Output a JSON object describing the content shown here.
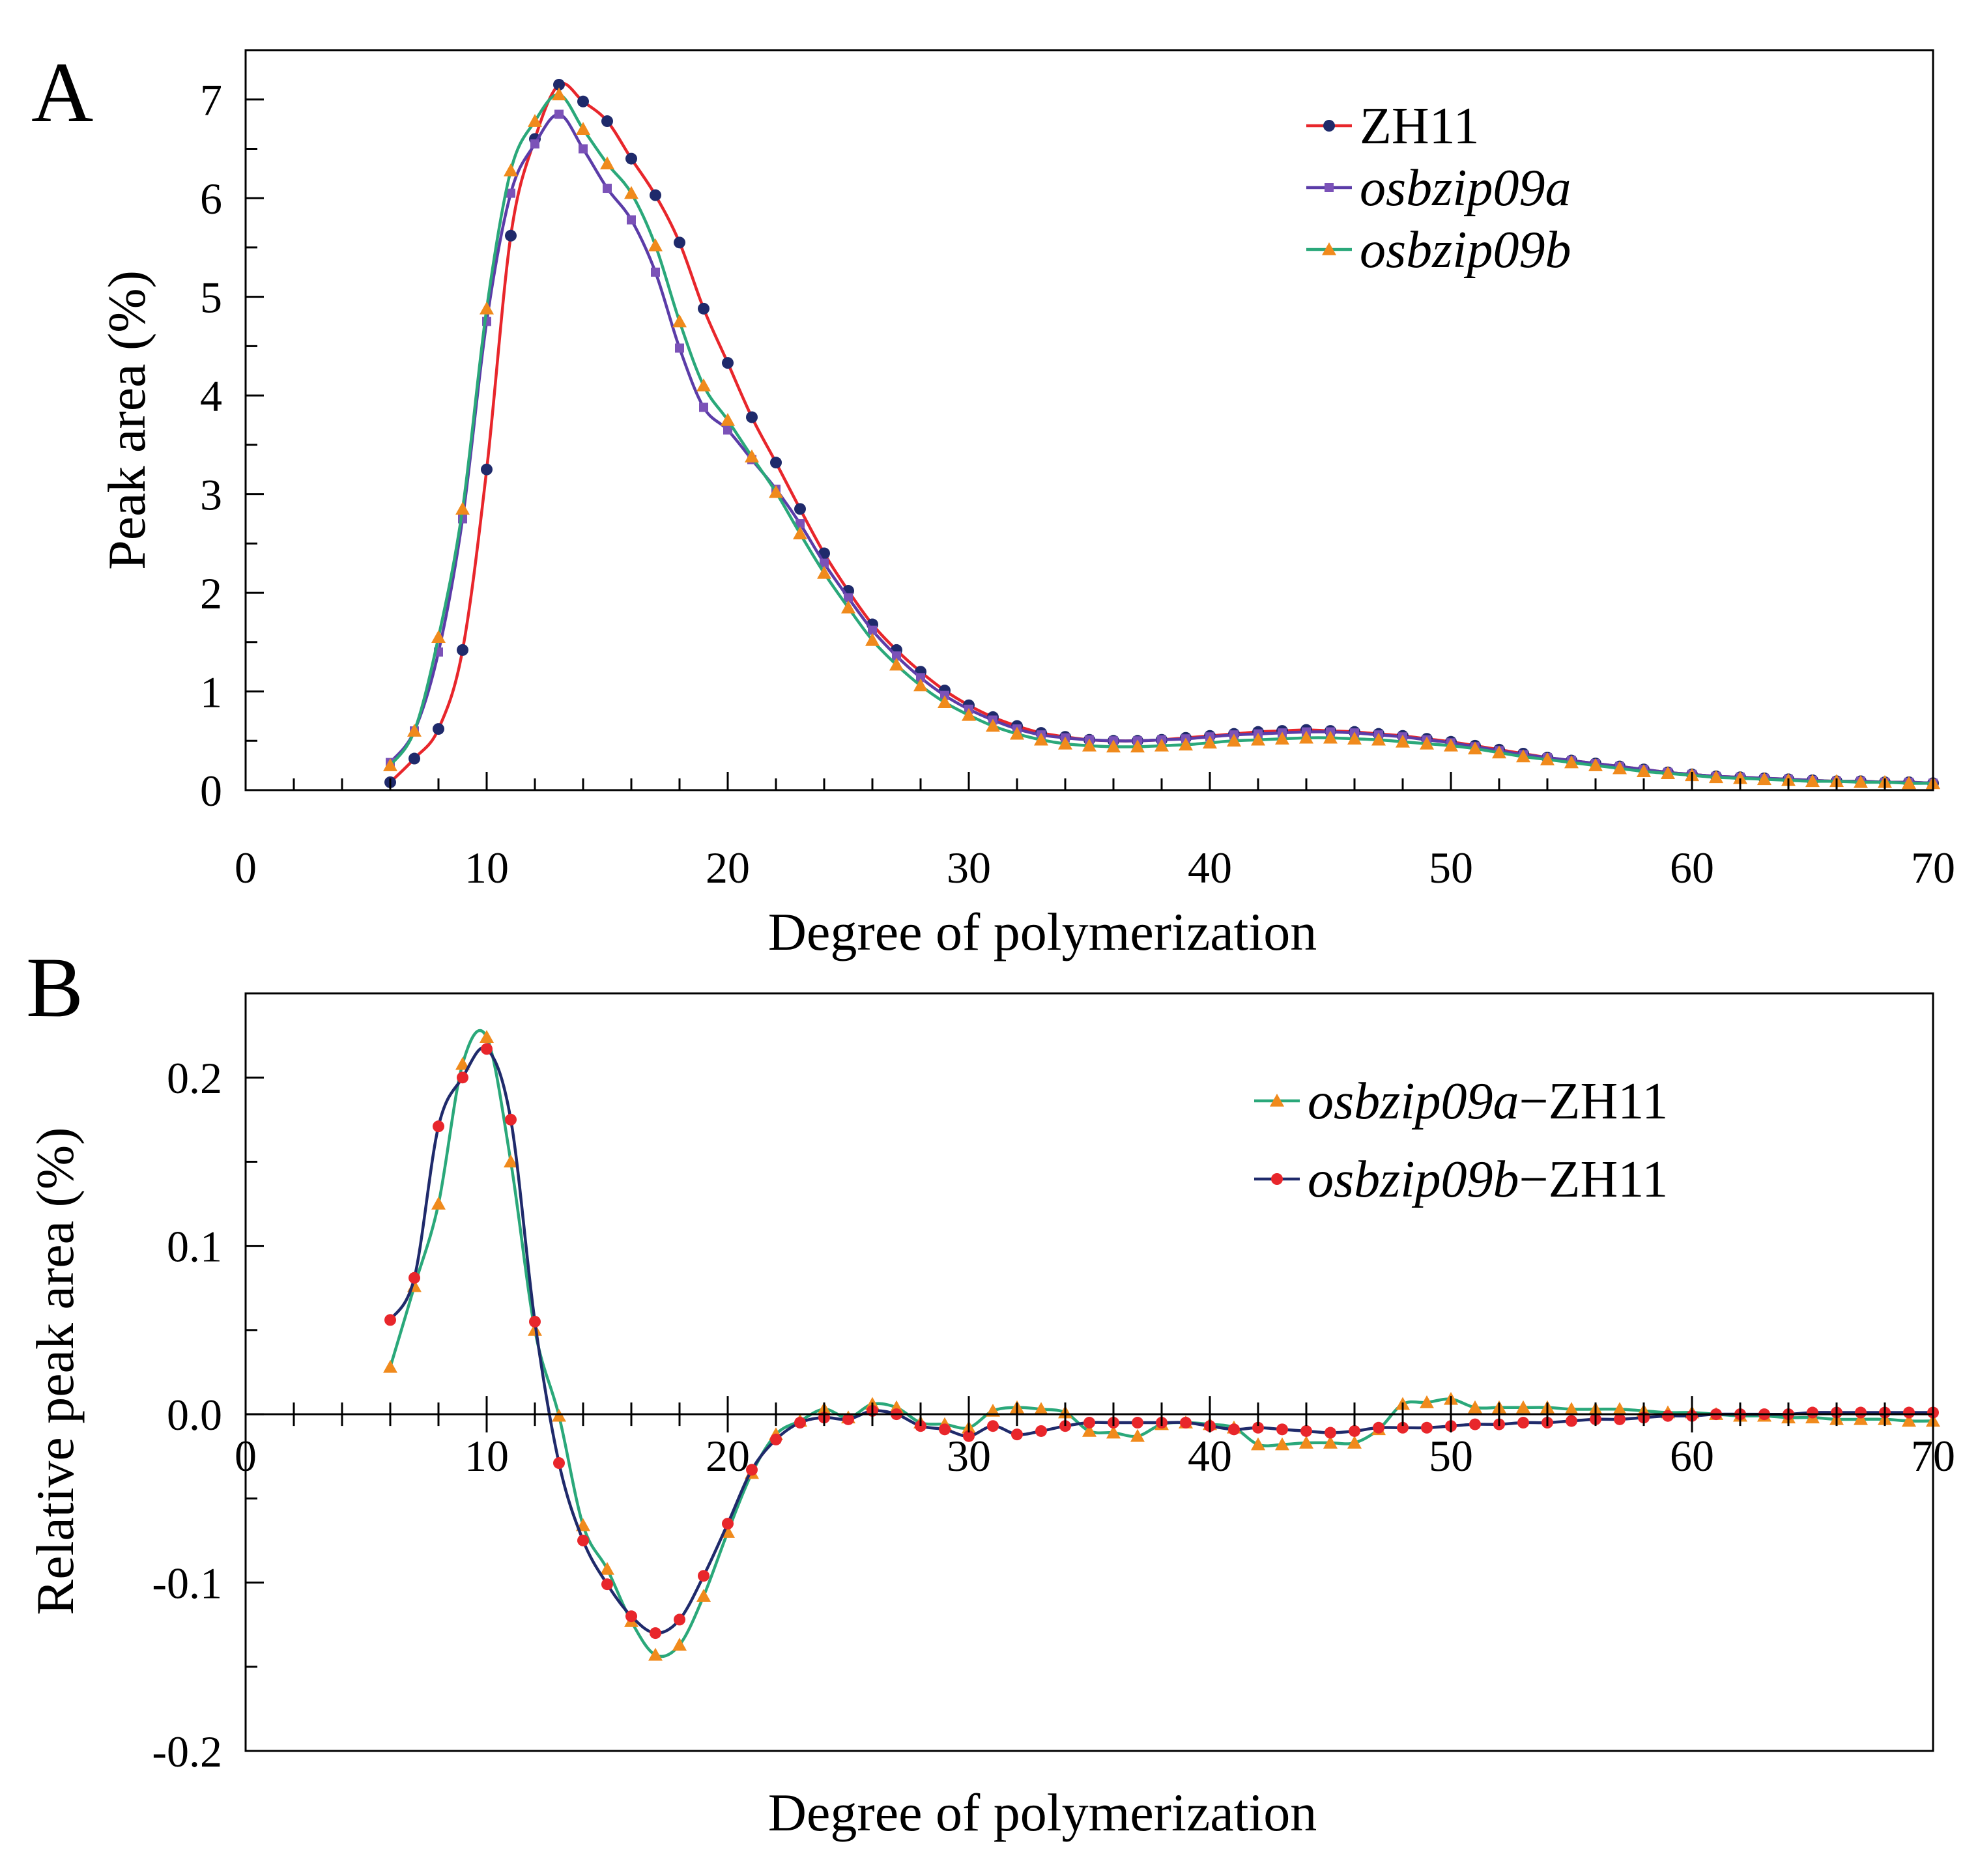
{
  "chart_data": [
    {
      "panel": "A",
      "type": "line",
      "xlabel": "Degree of polymerization",
      "ylabel": "Peak area (%)",
      "xlim": [
        0,
        70
      ],
      "ylim": [
        0,
        7.5
      ],
      "xticks": [
        "0",
        "10",
        "20",
        "30",
        "40",
        "50",
        "60",
        "70"
      ],
      "yticks": [
        "0",
        "1",
        "2",
        "3",
        "4",
        "5",
        "6",
        "7"
      ],
      "legend_position": "top-right",
      "series": [
        {
          "name": "ZH11",
          "italic": false,
          "line_color": "#e8262b",
          "marker_color": "#1f2a6b",
          "marker": "circle",
          "x": [
            6,
            7,
            8,
            9,
            10,
            11,
            12,
            13,
            14,
            15,
            16,
            17,
            18,
            19,
            20,
            21,
            22,
            23,
            24,
            25,
            26,
            27,
            28,
            29,
            30,
            31,
            32,
            33,
            34,
            35,
            36,
            37,
            38,
            39,
            40,
            41,
            42,
            43,
            44,
            45,
            46,
            47,
            48,
            49,
            50,
            51,
            52,
            53,
            54,
            55,
            56,
            57,
            58,
            59,
            60,
            61,
            62,
            63,
            64,
            65,
            66,
            67,
            68,
            69,
            70
          ],
          "y": [
            0.08,
            0.32,
            0.62,
            1.42,
            3.25,
            5.62,
            6.6,
            7.15,
            6.98,
            6.78,
            6.4,
            6.03,
            5.55,
            4.88,
            4.33,
            3.78,
            3.32,
            2.85,
            2.4,
            2.02,
            1.68,
            1.42,
            1.2,
            1.01,
            0.86,
            0.74,
            0.65,
            0.58,
            0.54,
            0.51,
            0.5,
            0.5,
            0.51,
            0.53,
            0.55,
            0.57,
            0.59,
            0.6,
            0.61,
            0.6,
            0.59,
            0.57,
            0.55,
            0.52,
            0.49,
            0.45,
            0.41,
            0.37,
            0.33,
            0.3,
            0.27,
            0.24,
            0.21,
            0.18,
            0.16,
            0.14,
            0.13,
            0.12,
            0.11,
            0.1,
            0.09,
            0.09,
            0.08,
            0.08,
            0.07
          ]
        },
        {
          "name": "osbzip09a",
          "italic": true,
          "line_color": "#5b3ca8",
          "marker_color": "#7b52b8",
          "marker": "square",
          "x": [
            6,
            7,
            8,
            9,
            10,
            11,
            12,
            13,
            14,
            15,
            16,
            17,
            18,
            19,
            20,
            21,
            22,
            23,
            24,
            25,
            26,
            27,
            28,
            29,
            30,
            31,
            32,
            33,
            34,
            35,
            36,
            37,
            38,
            39,
            40,
            41,
            42,
            43,
            44,
            45,
            46,
            47,
            48,
            49,
            50,
            51,
            52,
            53,
            54,
            55,
            56,
            57,
            58,
            59,
            60,
            61,
            62,
            63,
            64,
            65,
            66,
            67,
            68,
            69,
            70
          ],
          "y": [
            0.28,
            0.6,
            1.4,
            2.75,
            4.75,
            6.05,
            6.55,
            6.85,
            6.5,
            6.1,
            5.78,
            5.25,
            4.48,
            3.88,
            3.65,
            3.35,
            3.05,
            2.7,
            2.3,
            1.95,
            1.62,
            1.36,
            1.14,
            0.96,
            0.82,
            0.71,
            0.62,
            0.56,
            0.53,
            0.51,
            0.5,
            0.5,
            0.51,
            0.52,
            0.54,
            0.56,
            0.57,
            0.58,
            0.59,
            0.59,
            0.58,
            0.56,
            0.54,
            0.51,
            0.48,
            0.44,
            0.4,
            0.36,
            0.33,
            0.3,
            0.27,
            0.24,
            0.21,
            0.18,
            0.16,
            0.14,
            0.13,
            0.12,
            0.11,
            0.1,
            0.09,
            0.09,
            0.08,
            0.08,
            0.07
          ]
        },
        {
          "name": "osbzip09b",
          "italic": true,
          "line_color": "#2aa87a",
          "marker_color": "#f08a1c",
          "marker": "triangle",
          "x": [
            6,
            7,
            8,
            9,
            10,
            11,
            12,
            13,
            14,
            15,
            16,
            17,
            18,
            19,
            20,
            21,
            22,
            23,
            24,
            25,
            26,
            27,
            28,
            29,
            30,
            31,
            32,
            33,
            34,
            35,
            36,
            37,
            38,
            39,
            40,
            41,
            42,
            43,
            44,
            45,
            46,
            47,
            48,
            49,
            50,
            51,
            52,
            53,
            54,
            55,
            56,
            57,
            58,
            59,
            60,
            61,
            62,
            63,
            64,
            65,
            66,
            67,
            68,
            69,
            70
          ],
          "y": [
            0.25,
            0.6,
            1.55,
            2.85,
            4.88,
            6.28,
            6.78,
            7.05,
            6.7,
            6.35,
            6.05,
            5.52,
            4.75,
            4.1,
            3.75,
            3.38,
            3.02,
            2.6,
            2.2,
            1.85,
            1.52,
            1.27,
            1.06,
            0.89,
            0.76,
            0.65,
            0.57,
            0.51,
            0.47,
            0.45,
            0.44,
            0.44,
            0.45,
            0.46,
            0.48,
            0.5,
            0.51,
            0.52,
            0.53,
            0.53,
            0.52,
            0.51,
            0.49,
            0.47,
            0.45,
            0.42,
            0.38,
            0.34,
            0.31,
            0.28,
            0.25,
            0.22,
            0.19,
            0.17,
            0.15,
            0.13,
            0.12,
            0.11,
            0.1,
            0.09,
            0.09,
            0.08,
            0.08,
            0.07,
            0.07
          ]
        }
      ]
    },
    {
      "panel": "B",
      "type": "line",
      "xlabel": "Degree of polymerization",
      "ylabel": "Relative peak area (%)",
      "xlim": [
        0,
        70
      ],
      "ylim": [
        -0.2,
        0.25
      ],
      "xticks": [
        "0",
        "10",
        "20",
        "30",
        "40",
        "50",
        "60",
        "70"
      ],
      "yticks": [
        "0.2",
        "0.1",
        "0.0",
        "-0.1",
        "-0.2"
      ],
      "legend_position": "top-right",
      "series": [
        {
          "name": "osbzip09a",
          "suffix": "−ZH11",
          "italic": true,
          "line_color": "#2aa87a",
          "marker_color": "#f08a1c",
          "marker": "triangle",
          "x": [
            6,
            7,
            8,
            9,
            10,
            11,
            12,
            13,
            14,
            15,
            16,
            17,
            18,
            19,
            20,
            21,
            22,
            23,
            24,
            25,
            26,
            27,
            28,
            29,
            30,
            31,
            32,
            33,
            34,
            35,
            36,
            37,
            38,
            39,
            40,
            41,
            42,
            43,
            44,
            45,
            46,
            47,
            48,
            49,
            50,
            51,
            52,
            53,
            54,
            55,
            56,
            57,
            58,
            59,
            60,
            61,
            62,
            63,
            64,
            65,
            66,
            67,
            68,
            69,
            70
          ],
          "y": [
            0.028,
            0.076,
            0.125,
            0.208,
            0.224,
            0.15,
            0.05,
            -0.001,
            -0.066,
            -0.092,
            -0.123,
            -0.143,
            -0.137,
            -0.108,
            -0.07,
            -0.035,
            -0.012,
            -0.004,
            0.003,
            -0.002,
            0.006,
            0.004,
            -0.005,
            -0.006,
            -0.008,
            0.002,
            0.004,
            0.003,
            0.001,
            -0.01,
            -0.011,
            -0.013,
            -0.006,
            -0.005,
            -0.006,
            -0.008,
            -0.018,
            -0.018,
            -0.017,
            -0.017,
            -0.017,
            -0.009,
            0.006,
            0.007,
            0.009,
            0.004,
            0.004,
            0.004,
            0.004,
            0.003,
            0.003,
            0.003,
            0.002,
            0.001,
            0.001,
            0.0,
            -0.001,
            -0.001,
            -0.002,
            -0.002,
            -0.003,
            -0.003,
            -0.003,
            -0.004,
            -0.004
          ]
        },
        {
          "name": "osbzip09b",
          "suffix": "−ZH11",
          "italic": true,
          "line_color": "#1f2a6b",
          "marker_color": "#e8262b",
          "marker": "circle",
          "x": [
            6,
            7,
            8,
            9,
            10,
            11,
            12,
            13,
            14,
            15,
            16,
            17,
            18,
            19,
            20,
            21,
            22,
            23,
            24,
            25,
            26,
            27,
            28,
            29,
            30,
            31,
            32,
            33,
            34,
            35,
            36,
            37,
            38,
            39,
            40,
            41,
            42,
            43,
            44,
            45,
            46,
            47,
            48,
            49,
            50,
            51,
            52,
            53,
            54,
            55,
            56,
            57,
            58,
            59,
            60,
            61,
            62,
            63,
            64,
            65,
            66,
            67,
            68,
            69,
            70
          ],
          "y": [
            0.056,
            0.081,
            0.171,
            0.2,
            0.217,
            0.175,
            0.055,
            -0.029,
            -0.075,
            -0.101,
            -0.12,
            -0.13,
            -0.122,
            -0.096,
            -0.065,
            -0.033,
            -0.015,
            -0.005,
            -0.002,
            -0.003,
            0.002,
            0.0,
            -0.007,
            -0.009,
            -0.013,
            -0.007,
            -0.012,
            -0.01,
            -0.007,
            -0.005,
            -0.005,
            -0.005,
            -0.005,
            -0.005,
            -0.007,
            -0.009,
            -0.008,
            -0.009,
            -0.01,
            -0.011,
            -0.01,
            -0.008,
            -0.008,
            -0.008,
            -0.007,
            -0.006,
            -0.006,
            -0.005,
            -0.005,
            -0.004,
            -0.003,
            -0.003,
            -0.002,
            -0.001,
            -0.001,
            0.0,
            0.0,
            0.0,
            0.0,
            0.001,
            0.001,
            0.001,
            0.001,
            0.001,
            0.001
          ]
        }
      ]
    }
  ]
}
